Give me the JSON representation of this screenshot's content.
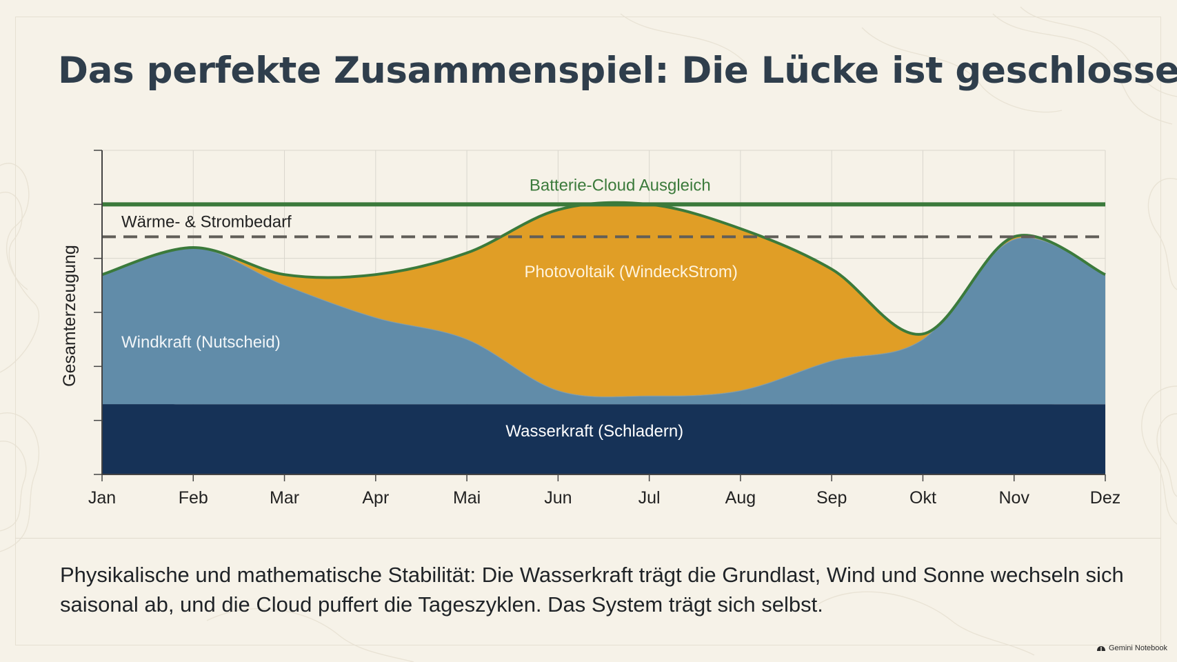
{
  "title": "Das perfekte Zusammenspiel: Die Lücke ist geschlossen",
  "caption": "Physikalische und mathematische Stabilität: Die Wasserkraft trägt die Grundlast, Wind und Sonne wechseln sich saisonal ab, und die Cloud puffert die Tageszyklen. Das System trägt sich selbst.",
  "brand": {
    "label": "Gemini Notebook",
    "icon": "notebook-icon"
  },
  "colors": {
    "hydro": "#163257",
    "wind": "#618ca9",
    "solar": "#e09e26",
    "battery_line": "#3b7a3b",
    "demand_line": "#615e58",
    "outline": "#3b7a3b",
    "axis": "#444444",
    "grid": "#d9d6cd"
  },
  "chart_data": {
    "type": "area",
    "stacked": true,
    "x": [
      "Jan",
      "Feb",
      "Mar",
      "Apr",
      "Mai",
      "Jun",
      "Jul",
      "Aug",
      "Sep",
      "Okt",
      "Nov",
      "Dez"
    ],
    "ylabel": "Gesamterzeugung",
    "xlabel": "",
    "ylim": [
      0,
      6
    ],
    "y_ticks_labeled": false,
    "grid": true,
    "series": [
      {
        "name": "Wasserkraft (Schladern)",
        "values": [
          1.3,
          1.3,
          1.3,
          1.3,
          1.3,
          1.3,
          1.3,
          1.3,
          1.3,
          1.3,
          1.3,
          1.3
        ]
      },
      {
        "name": "Windkraft (Nutscheid)",
        "values": [
          2.4,
          2.9,
          2.2,
          1.6,
          1.2,
          0.25,
          0.15,
          0.25,
          0.8,
          1.2,
          3.05,
          2.4
        ]
      },
      {
        "name": "Photovoltaik (WindeckStrom)",
        "values": [
          0.0,
          0.0,
          0.2,
          0.8,
          1.6,
          3.35,
          3.55,
          3.0,
          1.7,
          0.1,
          0.05,
          0.0
        ]
      }
    ],
    "reference_lines": [
      {
        "name": "Batterie-Cloud Ausgleich",
        "y": 5.0,
        "style": "solid"
      },
      {
        "name": "Wärme- & Strombedarf",
        "y": 4.4,
        "style": "dashed"
      }
    ]
  }
}
